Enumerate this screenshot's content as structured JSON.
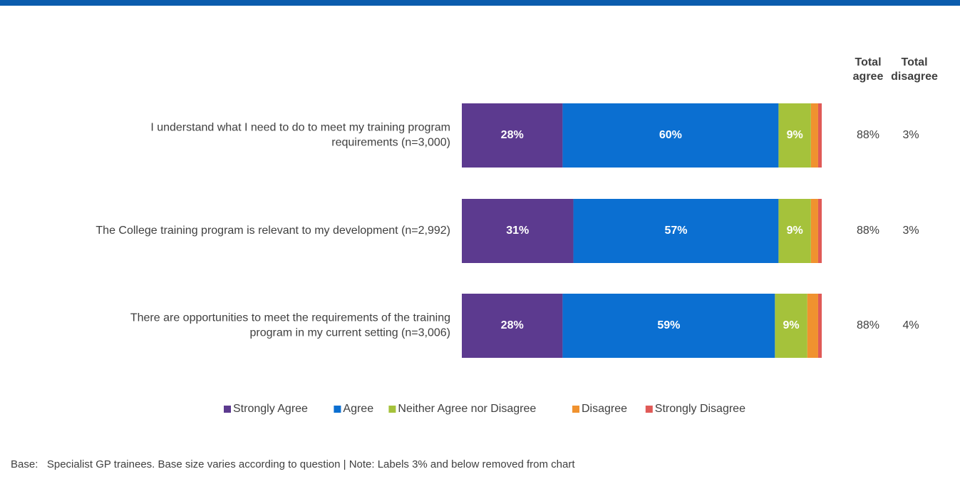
{
  "chart_data": {
    "type": "stacked-barh",
    "categories": [
      [
        "I understand what I need to do to meet my training program",
        "requirements (n=3,000)"
      ],
      [
        "The College training program is relevant to my development (n=2,992)"
      ],
      [
        "There are opportunities to meet the requirements of the training",
        "program in my current setting (n=3,006)"
      ]
    ],
    "xlim": [
      0,
      100
    ],
    "series": [
      {
        "name": "Strongly Agree",
        "color": "#5c3a8f",
        "values": [
          28,
          31,
          28
        ],
        "value_labels": [
          "28%",
          "31%",
          "28%"
        ]
      },
      {
        "name": "Agree",
        "color": "#0b6fd1",
        "values": [
          60,
          57,
          59
        ],
        "value_labels": [
          "60%",
          "57%",
          "59%"
        ]
      },
      {
        "name": "Neither Agree nor Disagree",
        "color": "#a5c23b",
        "values": [
          9,
          9,
          9
        ],
        "value_labels": [
          "9%",
          "9%",
          "9%"
        ]
      },
      {
        "name": "Disagree",
        "color": "#f0922f",
        "values": [
          2,
          2,
          3
        ]
      },
      {
        "name": "Strongly Disagree",
        "color": "#e05a57",
        "values": [
          1,
          1,
          1
        ]
      }
    ],
    "totals": [
      {
        "header": [
          "Total",
          "agree"
        ],
        "values": [
          "88%",
          "88%",
          "88%"
        ]
      },
      {
        "header": [
          "Total",
          "disagree"
        ],
        "values": [
          "3%",
          "3%",
          "4%"
        ]
      }
    ],
    "legend": "bottom",
    "footnote": "Base:   Specialist GP trainees. Base size varies according to question | Note: Labels 3% and below removed from chart"
  }
}
